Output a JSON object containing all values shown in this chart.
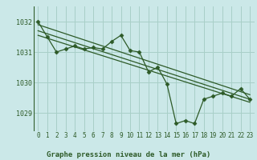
{
  "background_color": "#cbe8e8",
  "plot_bg_color": "#cbe8e8",
  "grid_color": "#a8cfc8",
  "line_color": "#2d5a27",
  "marker_color": "#2d5a27",
  "xlabel": "Graphe pression niveau de la mer (hPa)",
  "ylim": [
    1028.4,
    1032.5
  ],
  "xlim": [
    -0.5,
    23.5
  ],
  "yticks": [
    1029,
    1030,
    1031,
    1032
  ],
  "xticks": [
    0,
    1,
    2,
    3,
    4,
    5,
    6,
    7,
    8,
    9,
    10,
    11,
    12,
    13,
    14,
    15,
    16,
    17,
    18,
    19,
    20,
    21,
    22,
    23
  ],
  "series1": [
    1032.0,
    1031.5,
    1031.0,
    1031.1,
    1031.2,
    1031.1,
    1031.15,
    1031.1,
    1031.35,
    1031.55,
    1031.05,
    1031.0,
    1030.35,
    1030.5,
    1029.95,
    1028.65,
    1028.75,
    1028.65,
    1029.45,
    1029.55,
    1029.65,
    1029.55,
    1029.8,
    1029.45
  ],
  "trend1_x": [
    0,
    23
  ],
  "trend1_y": [
    1031.9,
    1029.6
  ],
  "trend2_x": [
    0,
    23
  ],
  "trend2_y": [
    1031.7,
    1029.45
  ],
  "trend3_x": [
    0,
    23
  ],
  "trend3_y": [
    1031.55,
    1029.35
  ]
}
